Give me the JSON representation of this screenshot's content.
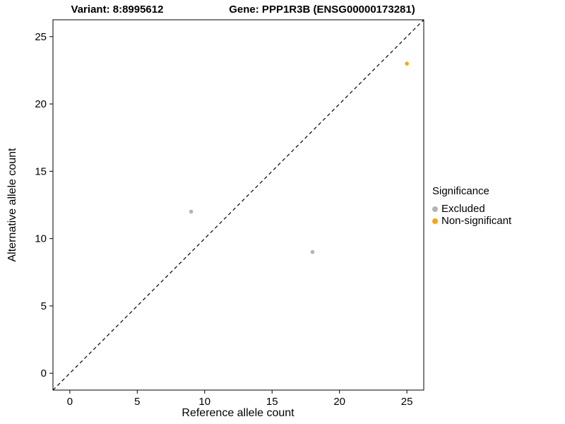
{
  "chart_data": {
    "type": "scatter",
    "title_left": "Variant: 8:8995612",
    "title_right": "Gene: PPP1R3B (ENSG00000173281)",
    "xlabel": "Reference allele count",
    "ylabel": "Alternative allele count",
    "xlim": [
      -1.25,
      26.25
    ],
    "ylim": [
      -1.25,
      26.25
    ],
    "xticks": [
      0,
      5,
      10,
      15,
      20,
      25
    ],
    "yticks": [
      0,
      5,
      10,
      15,
      20,
      25
    ],
    "grid": "off",
    "identity_line": {
      "style": "dashed",
      "color": "#000000"
    },
    "series": [
      {
        "name": "Excluded",
        "color": "#b3b3b3",
        "points": [
          {
            "x": 9,
            "y": 12
          },
          {
            "x": 18,
            "y": 9
          }
        ]
      },
      {
        "name": "Non-significant",
        "color": "#ffa500",
        "points": [
          {
            "x": 25,
            "y": 23
          }
        ]
      }
    ],
    "legend": {
      "title": "Significance",
      "position": "right"
    }
  }
}
